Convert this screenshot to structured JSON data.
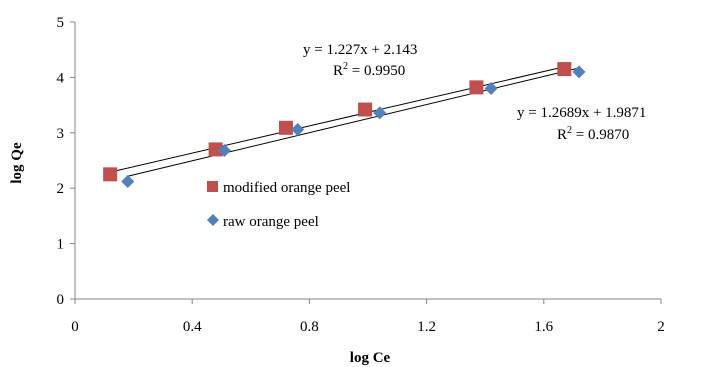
{
  "chart_data": {
    "type": "scatter",
    "xlabel": "log Ce",
    "ylabel": "log Qe",
    "xlim": [
      0,
      2
    ],
    "ylim": [
      0,
      5
    ],
    "xticks": [
      "0",
      "0.4",
      "0.8",
      "1.2",
      "1.6",
      "2"
    ],
    "yticks": [
      "0",
      "1",
      "2",
      "3",
      "4",
      "5"
    ],
    "grid": false,
    "legend_position": "center-left",
    "series": [
      {
        "name": "modified orange peel",
        "marker": "square",
        "color": "#C0504D",
        "x": [
          0.12,
          0.48,
          0.72,
          0.99,
          1.37,
          1.67
        ],
        "y": [
          2.25,
          2.7,
          3.09,
          3.42,
          3.82,
          4.15
        ],
        "trendline": {
          "slope": 1.227,
          "intercept": 2.143
        }
      },
      {
        "name": "raw orange peel",
        "marker": "diamond",
        "color": "#4F81BD",
        "x": [
          0.18,
          0.51,
          0.76,
          1.04,
          1.42,
          1.72
        ],
        "y": [
          2.12,
          2.68,
          3.06,
          3.36,
          3.8,
          4.1
        ],
        "trendline": {
          "slope": 1.2689,
          "intercept": 1.9871
        }
      }
    ],
    "annotations": [
      {
        "equation": "y = 1.227x + 2.143",
        "r2_label": "R",
        "r2_sup": "2",
        "r2_value": " = 0.9950"
      },
      {
        "equation": "y = 1.2689x + 1.9871",
        "r2_label": "R",
        "r2_sup": "2",
        "r2_value": " = 0.9870"
      }
    ]
  }
}
